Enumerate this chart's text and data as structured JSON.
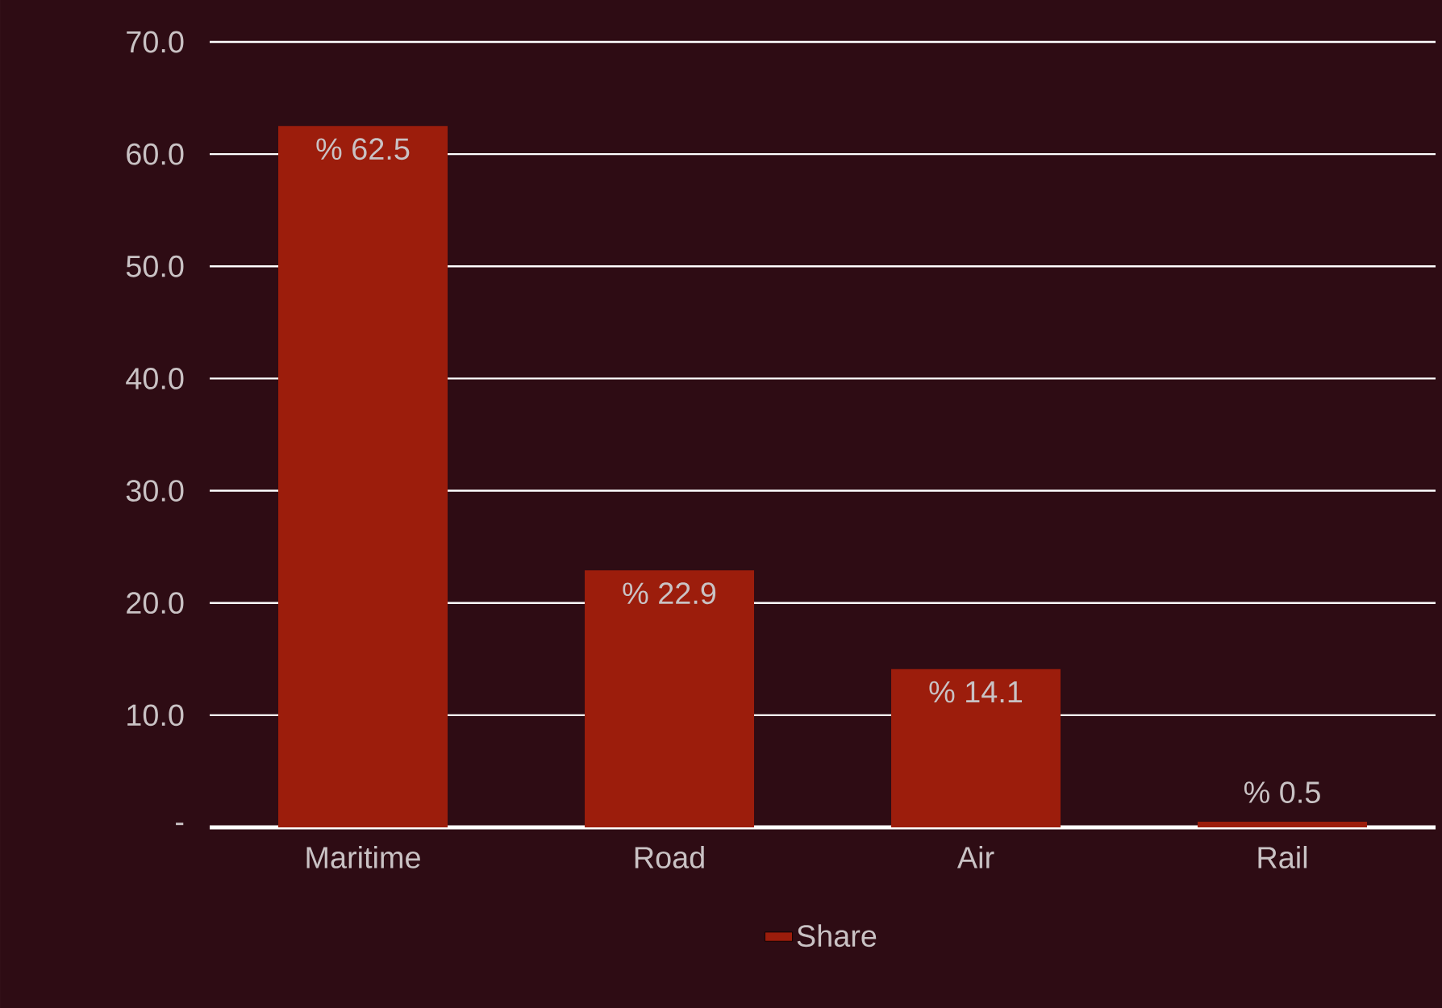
{
  "chart_data": {
    "type": "bar",
    "categories": [
      "Maritime",
      "Road",
      "Air",
      "Rail"
    ],
    "series": [
      {
        "name": "Share",
        "color": "#9c1d0c",
        "values": [
          62.5,
          22.9,
          14.1,
          0.5
        ],
        "value_labels": [
          "% 62.5",
          "% 22.9",
          "% 14.1",
          "% 0.5"
        ]
      }
    ],
    "ylim": [
      0,
      70
    ],
    "yticks": [
      {
        "value": 0,
        "label": "-"
      },
      {
        "value": 10,
        "label": "10.0"
      },
      {
        "value": 20,
        "label": "20.0"
      },
      {
        "value": 30,
        "label": "30.0"
      },
      {
        "value": 40,
        "label": "40.0"
      },
      {
        "value": 50,
        "label": "50.0"
      },
      {
        "value": 60,
        "label": "60.0"
      },
      {
        "value": 70,
        "label": "70.0"
      }
    ],
    "grid": "y",
    "legend": "bottom"
  }
}
